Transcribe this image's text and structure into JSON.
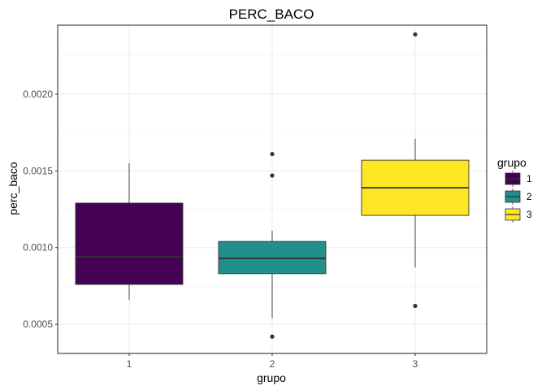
{
  "chart_data": {
    "type": "boxplot",
    "title": "PERC_BACO",
    "xlabel": "grupo",
    "ylabel": "perc_baco",
    "categories": [
      "1",
      "2",
      "3"
    ],
    "ylim": [
      0.00031,
      0.00245
    ],
    "yticks": [
      0.0005,
      0.001,
      0.0015,
      0.002
    ],
    "ytick_labels": [
      "0.0005",
      "0.0010",
      "0.0015",
      "0.0020"
    ],
    "grid": true,
    "legend": {
      "title": "grupo",
      "position": "right",
      "entries": [
        "1",
        "2",
        "3"
      ]
    },
    "series": [
      {
        "name": "1",
        "color": "#440154",
        "whisker_low": 0.00066,
        "q1": 0.00076,
        "median": 0.00094,
        "q3": 0.00129,
        "whisker_high": 0.00155,
        "outliers": []
      },
      {
        "name": "2",
        "color": "#21908C",
        "whisker_low": 0.00054,
        "q1": 0.00083,
        "median": 0.00093,
        "q3": 0.00104,
        "whisker_high": 0.00111,
        "outliers": [
          0.00042,
          0.00147,
          0.00161
        ]
      },
      {
        "name": "3",
        "color": "#FDE725",
        "whisker_low": 0.00087,
        "q1": 0.00121,
        "median": 0.00139,
        "q3": 0.00157,
        "whisker_high": 0.00171,
        "outliers": [
          0.00062,
          0.00239
        ]
      }
    ]
  }
}
